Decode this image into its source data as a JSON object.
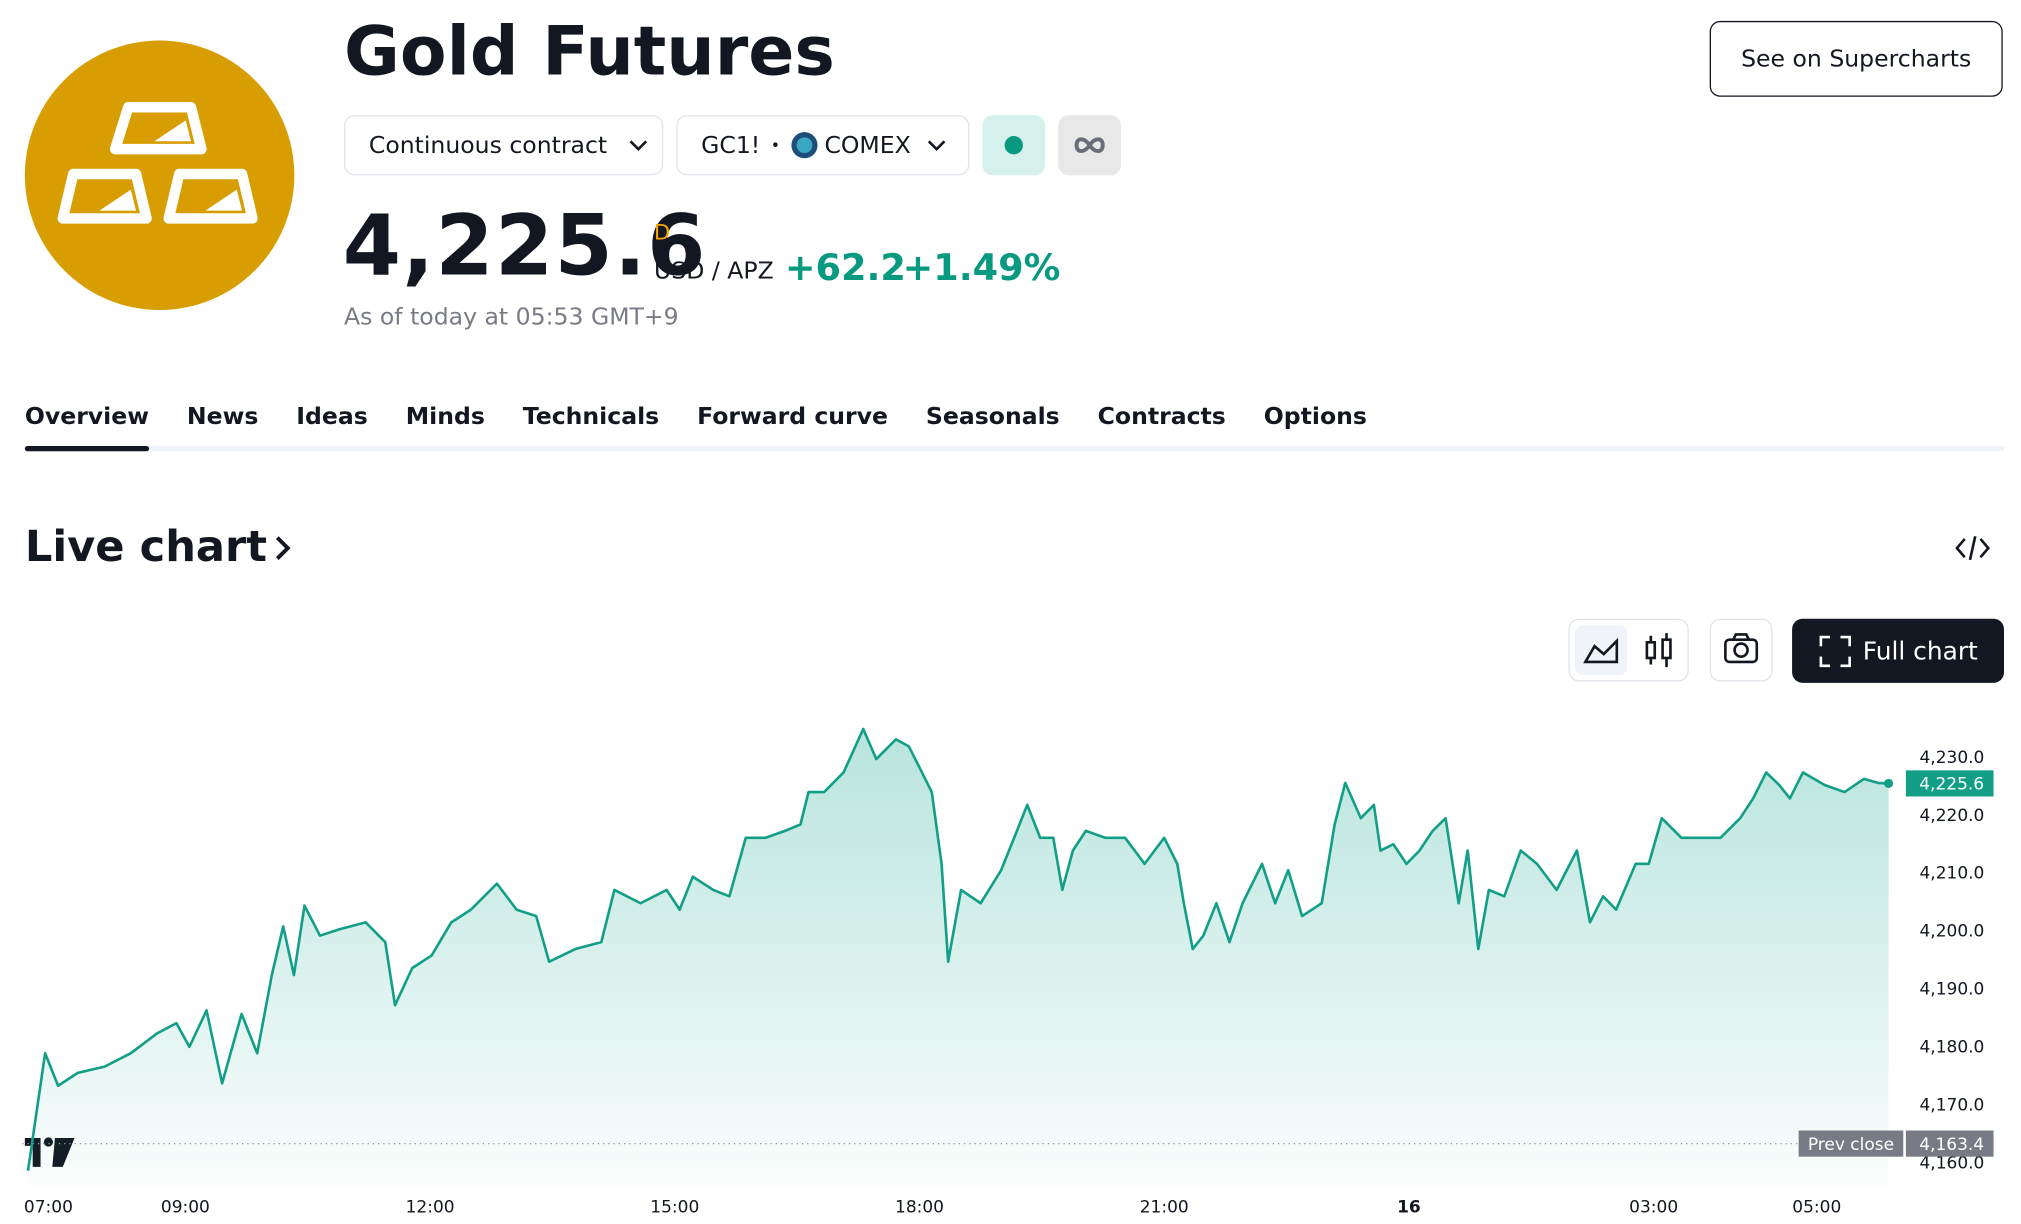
{
  "header": {
    "title": "Gold Futures",
    "contract": "Continuous contract",
    "symbol": "GC1!",
    "exchange": "COMEX",
    "price": "4,225.6",
    "price_flag": "D",
    "currency": "USD / APZ",
    "change": "+62.2",
    "change_percent": "+1.49%",
    "timestamp": "As of today at 05:53 GMT+9",
    "supercharts_button": "See on Supercharts"
  },
  "tabs": [
    "Overview",
    "News",
    "Ideas",
    "Minds",
    "Technicals",
    "Forward curve",
    "Seasonals",
    "Contracts",
    "Options"
  ],
  "section_title": "Live chart",
  "full_chart_button": "Full chart",
  "chart_data": {
    "type": "line",
    "area": true,
    "color": "#129e87",
    "x": [
      7.07,
      7.28,
      7.44,
      7.68,
      8.01,
      8.33,
      8.65,
      8.89,
      9.05,
      9.26,
      9.45,
      9.69,
      9.88,
      10.06,
      10.2,
      10.33,
      10.46,
      10.65,
      10.89,
      11.21,
      11.45,
      11.57,
      11.78,
      12.02,
      12.26,
      12.5,
      12.82,
      13.06,
      13.3,
      13.46,
      13.78,
      14.1,
      14.26,
      14.58,
      14.9,
      15.06,
      15.22,
      15.47,
      15.67,
      15.87,
      16.11,
      16.35,
      16.54,
      16.64,
      16.83,
      17.07,
      17.31,
      17.47,
      17.71,
      17.87,
      18.03,
      18.15,
      18.27,
      18.35,
      18.51,
      18.75,
      19.0,
      19.16,
      19.32,
      19.48,
      19.64,
      19.75,
      19.88,
      20.04,
      20.28,
      20.52,
      20.76,
      21.0,
      21.16,
      21.24,
      21.35,
      21.48,
      21.64,
      21.8,
      21.96,
      22.2,
      22.36,
      22.52,
      22.69,
      22.93,
      23.09,
      23.22,
      23.41,
      23.57,
      23.65,
      23.81,
      23.97,
      24.13,
      24.29,
      24.45,
      24.61,
      24.72,
      24.85,
      24.98,
      25.17,
      25.37,
      25.57,
      25.81,
      26.06,
      26.22,
      26.38,
      26.54,
      26.78,
      26.94,
      27.1,
      27.34,
      27.58,
      27.82,
      28.06,
      28.22,
      28.38,
      28.54,
      28.67,
      28.83,
      29.1,
      29.34,
      29.58,
      29.75,
      29.88
    ],
    "values": [
      4158.7,
      4179.0,
      4173.4,
      4175.6,
      4176.7,
      4179.0,
      4182.4,
      4184.2,
      4180.1,
      4186.4,
      4173.8,
      4185.8,
      4179.0,
      4192.5,
      4200.9,
      4192.5,
      4204.5,
      4199.3,
      4200.4,
      4201.6,
      4198.2,
      4187.3,
      4193.7,
      4195.9,
      4201.6,
      4203.8,
      4208.3,
      4203.8,
      4202.7,
      4194.8,
      4197.0,
      4198.2,
      4207.2,
      4204.9,
      4207.2,
      4203.8,
      4209.5,
      4207.2,
      4206.1,
      4216.2,
      4216.2,
      4217.4,
      4218.5,
      4224.1,
      4224.1,
      4227.5,
      4235.0,
      4229.8,
      4233.2,
      4232.0,
      4227.5,
      4224.1,
      4211.7,
      4194.8,
      4207.2,
      4204.9,
      4210.6,
      4216.2,
      4221.9,
      4216.2,
      4216.2,
      4207.2,
      4214.0,
      4217.4,
      4216.2,
      4216.2,
      4211.7,
      4216.2,
      4211.7,
      4204.9,
      4197.0,
      4199.3,
      4204.9,
      4198.2,
      4204.9,
      4211.7,
      4204.9,
      4210.6,
      4202.7,
      4204.9,
      4218.5,
      4225.7,
      4219.6,
      4221.9,
      4214.0,
      4215.1,
      4211.7,
      4214.0,
      4217.4,
      4219.6,
      4204.9,
      4214.0,
      4197.0,
      4207.2,
      4206.1,
      4214.0,
      4211.7,
      4207.2,
      4214.0,
      4201.6,
      4206.1,
      4203.8,
      4211.7,
      4211.7,
      4219.6,
      4216.2,
      4216.2,
      4216.2,
      4219.6,
      4223.0,
      4227.5,
      4225.3,
      4223.0,
      4227.5,
      4225.3,
      4224.1,
      4226.4,
      4225.7,
      4225.6
    ],
    "xlim": [
      7,
      29.9
    ],
    "xticks": [
      {
        "value": 7,
        "label": "07:00"
      },
      {
        "value": 9,
        "label": "09:00"
      },
      {
        "value": 12,
        "label": "12:00"
      },
      {
        "value": 15,
        "label": "15:00"
      },
      {
        "value": 18,
        "label": "18:00"
      },
      {
        "value": 21,
        "label": "21:00"
      },
      {
        "value": 24,
        "label": "16",
        "bold": true
      },
      {
        "value": 27,
        "label": "03:00"
      },
      {
        "value": 29,
        "label": "05:00"
      }
    ],
    "ylim": [
      4156,
      4238
    ],
    "yticks": [
      {
        "value": 4160,
        "label": "4,160.0"
      },
      {
        "value": 4170,
        "label": "4,170.0"
      },
      {
        "value": 4180,
        "label": "4,180.0"
      },
      {
        "value": 4190,
        "label": "4,190.0"
      },
      {
        "value": 4200,
        "label": "4,200.0"
      },
      {
        "value": 4210,
        "label": "4,210.0"
      },
      {
        "value": 4220,
        "label": "4,220.0"
      },
      {
        "value": 4230,
        "label": "4,230.0"
      }
    ],
    "reference_line": {
      "label": "Prev close",
      "value": 4163.4,
      "value_label": "4,163.4"
    },
    "last_value": {
      "value": 4225.6,
      "label": "4,225.6"
    }
  }
}
